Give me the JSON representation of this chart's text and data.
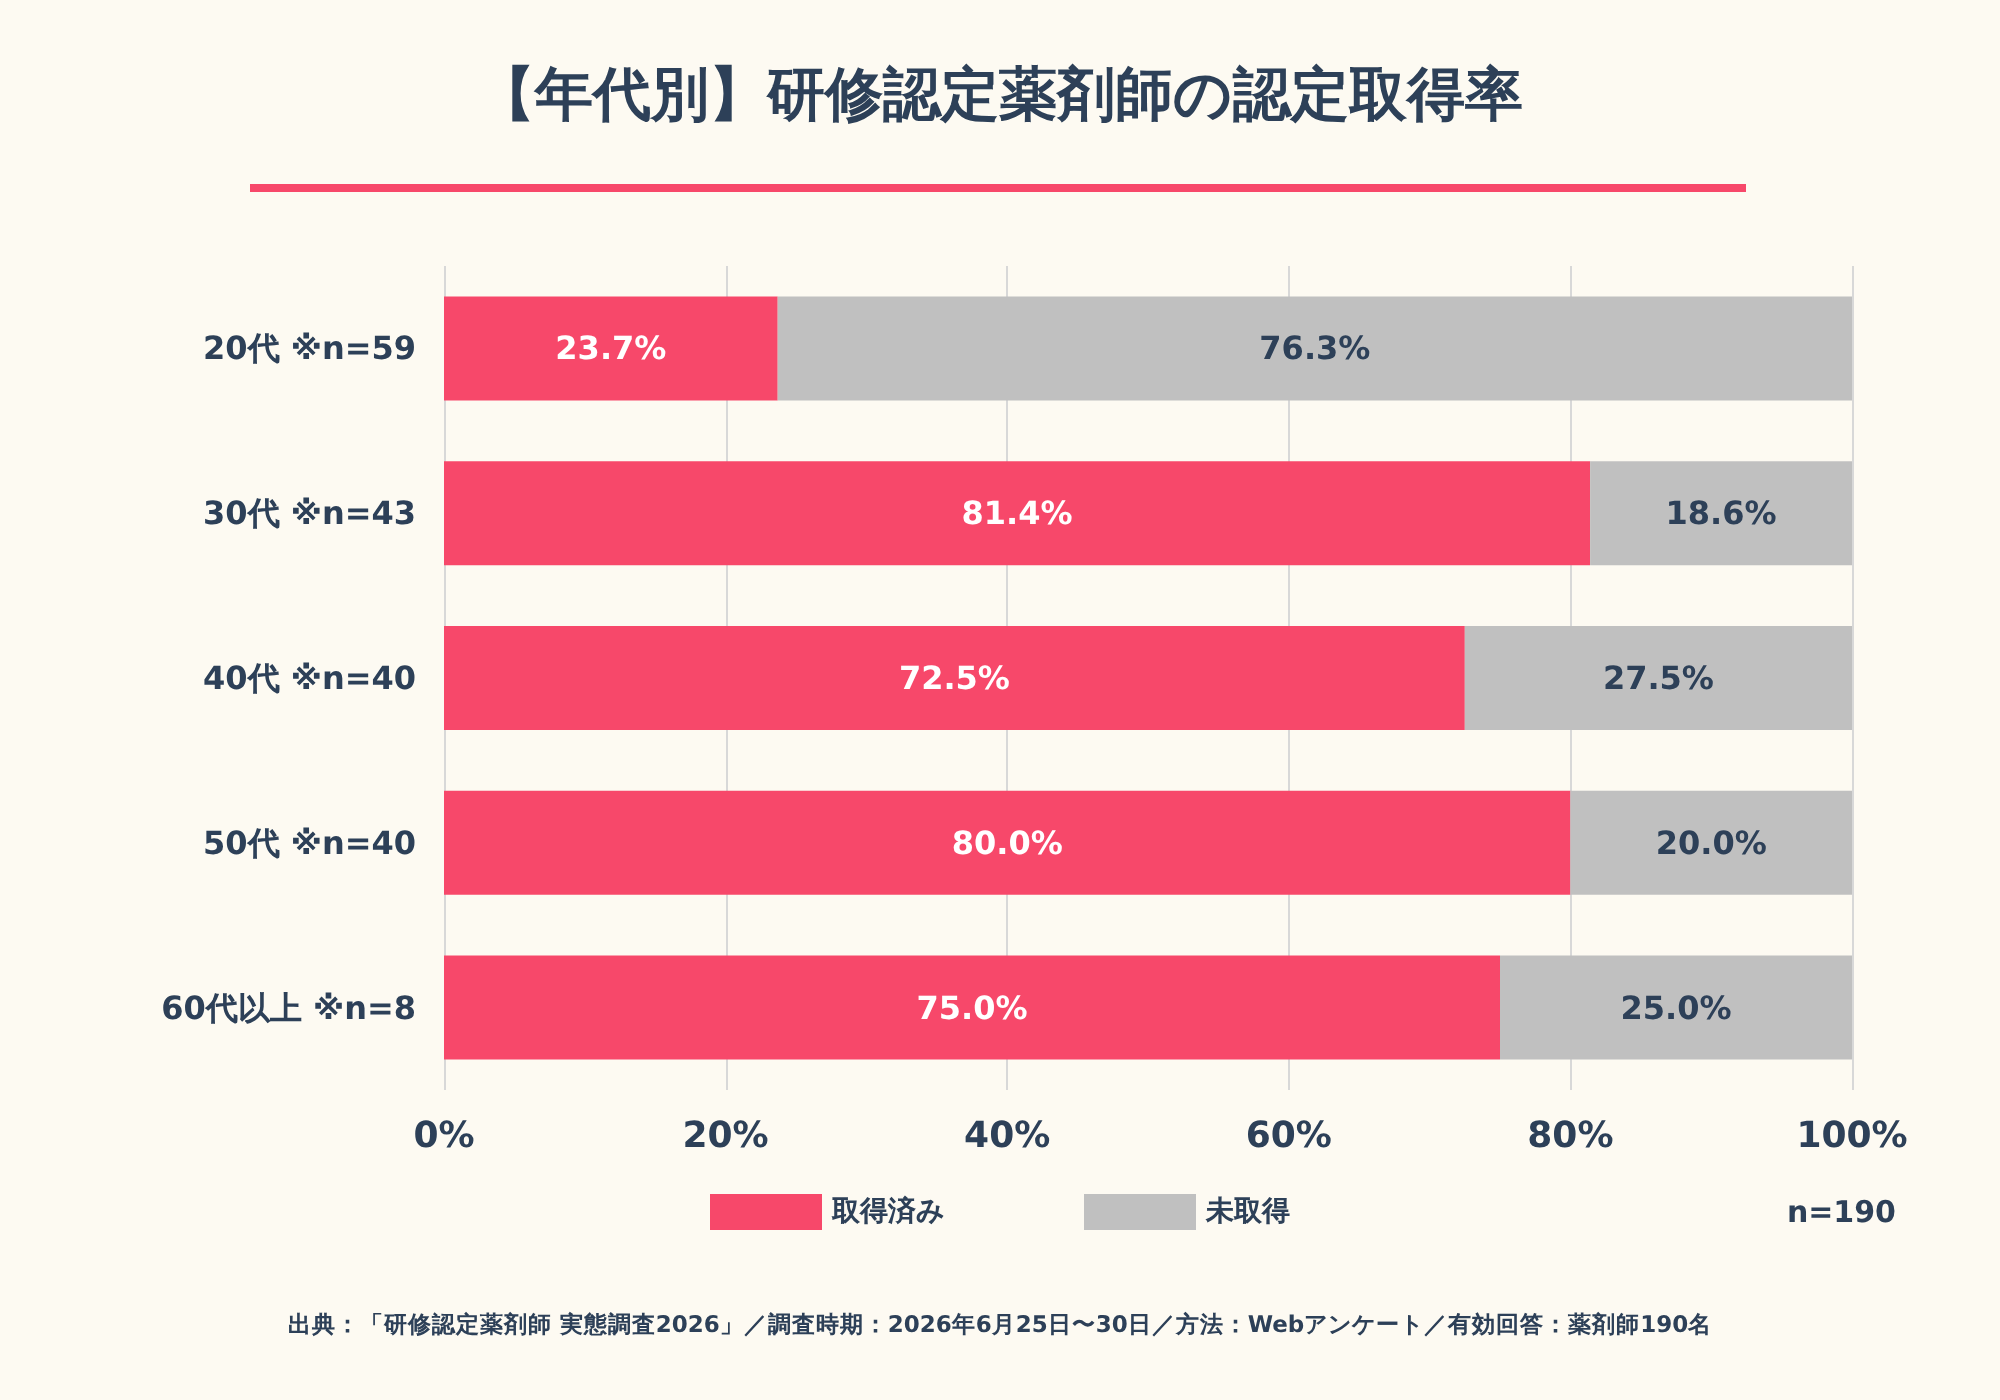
{
  "chart_data": {
    "type": "bar",
    "orientation": "horizontal",
    "stacked": true,
    "title": "【年代別】研修認定薬剤師の認定取得率",
    "categories": [
      "20代 ※n=59",
      "30代 ※n=43",
      "40代 ※n=40",
      "50代 ※n=40",
      "60代以上 ※n=8"
    ],
    "series": [
      {
        "name": "取得済み",
        "color": "#f7486a",
        "values": [
          23.7,
          81.4,
          72.5,
          80.0,
          75.0
        ],
        "value_labels": [
          "23.7%",
          "81.4%",
          "72.5%",
          "80.0%",
          "75.0%"
        ]
      },
      {
        "name": "未取得",
        "color": "#c0c0c0",
        "values": [
          76.3,
          18.6,
          27.5,
          20.0,
          25.0
        ],
        "value_labels": [
          "76.3%",
          "18.6%",
          "27.5%",
          "20.0%",
          "25.0%"
        ]
      }
    ],
    "xlim": [
      0,
      100
    ],
    "xticks": [
      {
        "value": 0,
        "label": "0%"
      },
      {
        "value": 20,
        "label": "20%"
      },
      {
        "value": 40,
        "label": "40%"
      },
      {
        "value": 60,
        "label": "60%"
      },
      {
        "value": 80,
        "label": "80%"
      },
      {
        "value": 100,
        "label": "100%"
      }
    ],
    "grid": "x",
    "legend": "bottom",
    "annotations": [
      "n=190",
      "出典：「研修認定薬剤師 実態調査2026」／調査時期：2026年6月25日〜30日／方法：Webアンケート／有効回答：薬剤師190名"
    ]
  }
}
